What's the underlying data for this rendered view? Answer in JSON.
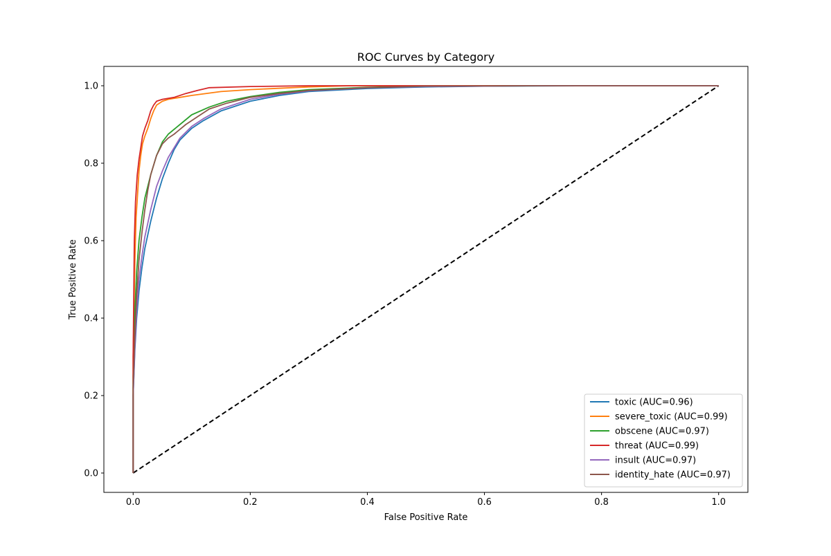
{
  "chart_data": {
    "type": "line",
    "title": "ROC Curves by Category",
    "xlabel": "False Positive Rate",
    "ylabel": "True Positive Rate",
    "xlim": [
      -0.05,
      1.05
    ],
    "ylim": [
      -0.05,
      1.05
    ],
    "xticks": [
      0.0,
      0.2,
      0.4,
      0.6,
      0.8,
      1.0
    ],
    "yticks": [
      0.0,
      0.2,
      0.4,
      0.6,
      0.8,
      1.0
    ],
    "xtick_labels": [
      "0.0",
      "0.2",
      "0.4",
      "0.6",
      "0.8",
      "1.0"
    ],
    "ytick_labels": [
      "0.0",
      "0.2",
      "0.4",
      "0.6",
      "0.8",
      "1.0"
    ],
    "grid": false,
    "legend_position": "lower-right",
    "series": [
      {
        "name": "toxic (AUC=0.96)",
        "color": "#1f77b4",
        "x": [
          0.0,
          0.0,
          0.003,
          0.006,
          0.01,
          0.015,
          0.02,
          0.03,
          0.04,
          0.05,
          0.06,
          0.07,
          0.08,
          0.1,
          0.12,
          0.15,
          0.2,
          0.25,
          0.3,
          0.4,
          0.5,
          0.6,
          0.8,
          1.0
        ],
        "y": [
          0.0,
          0.2,
          0.32,
          0.4,
          0.47,
          0.53,
          0.58,
          0.65,
          0.71,
          0.76,
          0.8,
          0.835,
          0.86,
          0.89,
          0.91,
          0.935,
          0.96,
          0.975,
          0.985,
          0.993,
          0.997,
          0.999,
          1.0,
          1.0
        ]
      },
      {
        "name": "severe_toxic (AUC=0.99)",
        "color": "#ff7f0e",
        "x": [
          0.0,
          0.0,
          0.003,
          0.005,
          0.008,
          0.01,
          0.013,
          0.016,
          0.02,
          0.025,
          0.03,
          0.035,
          0.04,
          0.05,
          0.06,
          0.08,
          0.1,
          0.15,
          0.2,
          0.3,
          0.37,
          0.5,
          1.0
        ],
        "y": [
          0.0,
          0.3,
          0.55,
          0.66,
          0.73,
          0.78,
          0.82,
          0.85,
          0.87,
          0.89,
          0.915,
          0.935,
          0.95,
          0.96,
          0.965,
          0.97,
          0.975,
          0.985,
          0.99,
          0.997,
          1.0,
          1.0,
          1.0
        ]
      },
      {
        "name": "obscene (AUC=0.97)",
        "color": "#2ca02c",
        "x": [
          0.0,
          0.0,
          0.003,
          0.006,
          0.01,
          0.015,
          0.02,
          0.03,
          0.04,
          0.05,
          0.06,
          0.08,
          0.1,
          0.13,
          0.16,
          0.2,
          0.25,
          0.3,
          0.4,
          0.5,
          0.7,
          1.0
        ],
        "y": [
          0.0,
          0.25,
          0.42,
          0.52,
          0.6,
          0.66,
          0.71,
          0.77,
          0.82,
          0.855,
          0.875,
          0.9,
          0.925,
          0.945,
          0.96,
          0.972,
          0.983,
          0.99,
          0.996,
          0.999,
          1.0,
          1.0
        ]
      },
      {
        "name": "threat (AUC=0.99)",
        "color": "#d62728",
        "x": [
          0.0,
          0.0,
          0.002,
          0.004,
          0.007,
          0.01,
          0.013,
          0.016,
          0.02,
          0.025,
          0.03,
          0.035,
          0.04,
          0.05,
          0.07,
          0.09,
          0.11,
          0.13,
          0.2,
          0.3,
          0.4,
          1.0
        ],
        "y": [
          0.0,
          0.3,
          0.6,
          0.7,
          0.77,
          0.81,
          0.84,
          0.87,
          0.89,
          0.91,
          0.935,
          0.95,
          0.96,
          0.965,
          0.97,
          0.98,
          0.988,
          0.995,
          0.998,
          1.0,
          1.0,
          1.0
        ]
      },
      {
        "name": "insult (AUC=0.97)",
        "color": "#9467bd",
        "x": [
          0.0,
          0.0,
          0.003,
          0.006,
          0.01,
          0.015,
          0.02,
          0.03,
          0.04,
          0.05,
          0.06,
          0.07,
          0.08,
          0.1,
          0.12,
          0.15,
          0.2,
          0.25,
          0.3,
          0.4,
          0.5,
          0.7,
          1.0
        ],
        "y": [
          0.0,
          0.2,
          0.33,
          0.42,
          0.5,
          0.56,
          0.61,
          0.68,
          0.74,
          0.78,
          0.815,
          0.84,
          0.865,
          0.895,
          0.915,
          0.94,
          0.965,
          0.978,
          0.987,
          0.995,
          0.998,
          1.0,
          1.0
        ]
      },
      {
        "name": "identity_hate (AUC=0.97)",
        "color": "#8c564b",
        "x": [
          0.0,
          0.0,
          0.003,
          0.006,
          0.01,
          0.015,
          0.02,
          0.025,
          0.03,
          0.04,
          0.05,
          0.06,
          0.07,
          0.09,
          0.11,
          0.13,
          0.16,
          0.2,
          0.25,
          0.3,
          0.4,
          0.5,
          0.7,
          1.0
        ],
        "y": [
          0.0,
          0.22,
          0.36,
          0.46,
          0.55,
          0.62,
          0.68,
          0.73,
          0.77,
          0.82,
          0.85,
          0.865,
          0.875,
          0.9,
          0.92,
          0.94,
          0.955,
          0.97,
          0.98,
          0.988,
          0.995,
          0.999,
          1.0,
          1.0
        ]
      }
    ],
    "reference_line": {
      "x": [
        0.0,
        1.0
      ],
      "y": [
        0.0,
        1.0
      ],
      "color": "#000000",
      "style": "dashed"
    }
  }
}
